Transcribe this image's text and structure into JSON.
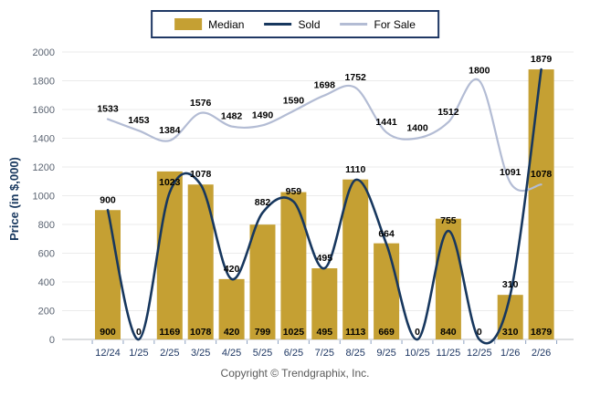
{
  "legend": {
    "items": [
      {
        "label": "Median",
        "swatch": "bar-swatch-icon",
        "color": "#c5a033"
      },
      {
        "label": "Sold",
        "swatch": "line-swatch-icon",
        "color": "#17375e"
      },
      {
        "label": "For Sale",
        "swatch": "line-swatch-icon",
        "color": "#b3bcd4"
      }
    ]
  },
  "y_axis_title": "Price (in $,000)",
  "copyright": "Copyright © Trendgraphix, Inc.",
  "chart_data": {
    "type": "bar+line combo",
    "title": "",
    "xlabel": "",
    "ylabel": "Price (in $,000)",
    "ylim": [
      0,
      2000
    ],
    "ytick_step": 200,
    "grid": true,
    "legend_position": "top-center",
    "categories": [
      "12/24",
      "1/25",
      "2/25",
      "3/25",
      "4/25",
      "5/25",
      "6/25",
      "7/25",
      "8/25",
      "9/25",
      "10/25",
      "11/25",
      "12/25",
      "1/26",
      "2/26"
    ],
    "series": [
      {
        "name": "Median",
        "type": "bar",
        "color": "#c5a033",
        "values": [
          900,
          0,
          1169,
          1078,
          420,
          799,
          1025,
          495,
          1113,
          669,
          0,
          840,
          0,
          310,
          1879
        ]
      },
      {
        "name": "Sold",
        "type": "line",
        "color": "#17375e",
        "values": [
          900,
          0,
          1023,
          1078,
          420,
          882,
          959,
          495,
          1110,
          664,
          0,
          755,
          0,
          310,
          1879
        ]
      },
      {
        "name": "For Sale",
        "type": "line",
        "color": "#b3bcd4",
        "values": [
          1533,
          1453,
          1384,
          1576,
          1482,
          1490,
          1590,
          1698,
          1752,
          1441,
          1400,
          1512,
          1800,
          1091,
          1078
        ]
      }
    ]
  }
}
